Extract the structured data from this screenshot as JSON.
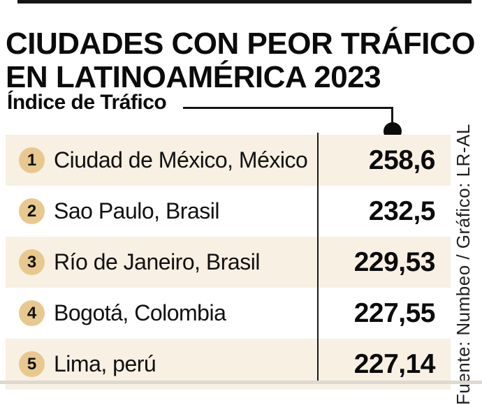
{
  "header": {
    "title_line1": "CIUDADES CON PEOR TRÁFICO",
    "title_line2": "EN LATINOAMÉRICA 2023"
  },
  "callout": {
    "label": "Índice de Tráfico"
  },
  "rows": [
    {
      "rank": "1",
      "city": "Ciudad de México, México",
      "value": "258,6"
    },
    {
      "rank": "2",
      "city": "Sao Paulo, Brasil",
      "value": "232,5"
    },
    {
      "rank": "3",
      "city": "Río de Janeiro, Brasil",
      "value": "229,53"
    },
    {
      "rank": "4",
      "city": "Bogotá, Colombia",
      "value": "227,55"
    },
    {
      "rank": "5",
      "city": "Lima, perú",
      "value": "227,14"
    }
  ],
  "source": {
    "text": "Fuente: Numbeo / Gráfico: LR-AL"
  },
  "colors": {
    "row_cream": "#f7f0e3",
    "badge_tan": "#e7c98f",
    "ink_black": "#0b0b0b",
    "source_gray": "#1f1f1f"
  },
  "chart_data": {
    "type": "table",
    "title": "CIUDADES CON PEOR TRÁFICO EN LATINOAMÉRICA 2023",
    "value_label": "Índice de Tráfico",
    "categories": [
      "Ciudad de México, México",
      "Sao Paulo, Brasil",
      "Río de Janeiro, Brasil",
      "Bogotá, Colombia",
      "Lima, perú"
    ],
    "ranks": [
      1,
      2,
      3,
      4,
      5
    ],
    "values": [
      258.6,
      232.5,
      229.53,
      227.55,
      227.14
    ],
    "value_labels": [
      "258,6",
      "232,5",
      "229,53",
      "227,55",
      "227,14"
    ],
    "source": "Fuente: Numbeo / Gráfico: LR-AL",
    "legend_position": "none",
    "grid": false
  }
}
